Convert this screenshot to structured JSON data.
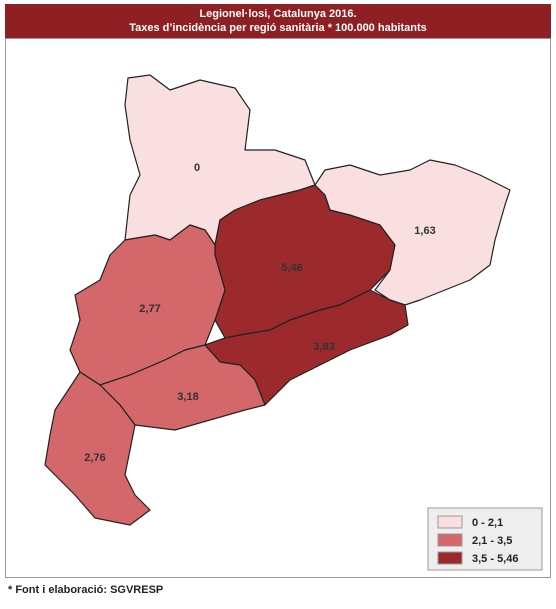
{
  "header": {
    "title": "Legionel·losi, Catalunya 2016.",
    "subtitle": "Taxes d’incidència per regió sanitària * 100.000 habitants"
  },
  "regions": [
    {
      "label": "0",
      "color": "#f9dfe0"
    },
    {
      "label": "5,46",
      "color": "#9c2a2c"
    },
    {
      "label": "1,63",
      "color": "#f9dfe0"
    },
    {
      "label": "3,83",
      "color": "#9c2a2c"
    },
    {
      "label": "2,77",
      "color": "#d4676a"
    },
    {
      "label": "3,18",
      "color": "#d4676a"
    },
    {
      "label": "2,76",
      "color": "#d4676a"
    }
  ],
  "legend": [
    {
      "label": "0 - 2,1",
      "color": "#f9dfe0"
    },
    {
      "label": "2,1 - 3,5",
      "color": "#d4676a"
    },
    {
      "label": "3,5 - 5,46",
      "color": "#9c2a2c"
    }
  ],
  "footer": "* Font i elaboració: SGVRESP"
}
